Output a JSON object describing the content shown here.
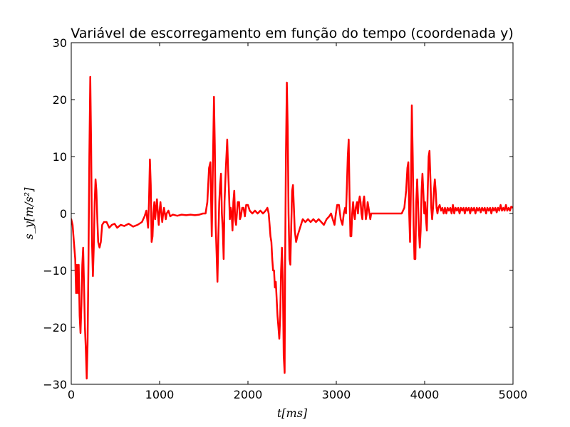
{
  "chart_data": {
    "type": "line",
    "title": "Variável de escorregamento em função do tempo (coordenada y)",
    "xlabel": "t[ms]",
    "ylabel": "s_y[m/s²]",
    "xlim": [
      0,
      5000
    ],
    "ylim": [
      -30,
      30
    ],
    "xticks": [
      0,
      1000,
      2000,
      3000,
      4000,
      5000
    ],
    "yticks": [
      -30,
      -20,
      -10,
      0,
      10,
      20,
      30
    ],
    "grid": false,
    "legend": "none",
    "colors": {
      "line": "#ff0000",
      "axes": "#000000",
      "background": "#ffffff"
    },
    "series": [
      {
        "values": [
          [
            0,
            -1
          ],
          [
            15,
            -2
          ],
          [
            30,
            -5
          ],
          [
            45,
            -8
          ],
          [
            55,
            -14
          ],
          [
            65,
            -9
          ],
          [
            75,
            -14
          ],
          [
            85,
            -9
          ],
          [
            95,
            -18
          ],
          [
            105,
            -21
          ],
          [
            115,
            -16
          ],
          [
            125,
            -9
          ],
          [
            135,
            -6
          ],
          [
            145,
            -13
          ],
          [
            155,
            -20
          ],
          [
            165,
            -24
          ],
          [
            175,
            -29
          ],
          [
            185,
            -23
          ],
          [
            195,
            -8
          ],
          [
            205,
            10
          ],
          [
            215,
            24
          ],
          [
            225,
            12
          ],
          [
            235,
            -5
          ],
          [
            245,
            -11
          ],
          [
            255,
            -6
          ],
          [
            265,
            2
          ],
          [
            275,
            6
          ],
          [
            285,
            4
          ],
          [
            295,
            -1
          ],
          [
            305,
            -5
          ],
          [
            320,
            -6
          ],
          [
            335,
            -5
          ],
          [
            350,
            -2
          ],
          [
            370,
            -1.5
          ],
          [
            400,
            -1.5
          ],
          [
            430,
            -2.5
          ],
          [
            460,
            -2
          ],
          [
            490,
            -1.8
          ],
          [
            520,
            -2.5
          ],
          [
            560,
            -2
          ],
          [
            600,
            -2.2
          ],
          [
            650,
            -1.8
          ],
          [
            700,
            -2.3
          ],
          [
            750,
            -2
          ],
          [
            800,
            -1.5
          ],
          [
            830,
            -0.5
          ],
          [
            850,
            0.5
          ],
          [
            860,
            -1
          ],
          [
            870,
            -2.5
          ],
          [
            880,
            2
          ],
          [
            890,
            9.5
          ],
          [
            900,
            5
          ],
          [
            910,
            -5
          ],
          [
            920,
            -4
          ],
          [
            930,
            0
          ],
          [
            940,
            2
          ],
          [
            950,
            -1
          ],
          [
            960,
            1
          ],
          [
            970,
            2.5
          ],
          [
            980,
            0
          ],
          [
            990,
            -2
          ],
          [
            1000,
            0.5
          ],
          [
            1010,
            2
          ],
          [
            1020,
            0
          ],
          [
            1030,
            -1.5
          ],
          [
            1040,
            0
          ],
          [
            1050,
            1
          ],
          [
            1060,
            0
          ],
          [
            1070,
            -1
          ],
          [
            1080,
            0
          ],
          [
            1100,
            0.5
          ],
          [
            1120,
            -0.5
          ],
          [
            1150,
            -0.2
          ],
          [
            1200,
            -0.4
          ],
          [
            1250,
            -0.2
          ],
          [
            1300,
            -0.3
          ],
          [
            1350,
            -0.2
          ],
          [
            1400,
            -0.3
          ],
          [
            1450,
            -0.2
          ],
          [
            1490,
            0
          ],
          [
            1520,
            0
          ],
          [
            1540,
            2
          ],
          [
            1560,
            8
          ],
          [
            1575,
            9
          ],
          [
            1590,
            -4
          ],
          [
            1600,
            5
          ],
          [
            1615,
            20.5
          ],
          [
            1625,
            12
          ],
          [
            1635,
            -2
          ],
          [
            1645,
            -7
          ],
          [
            1655,
            -12
          ],
          [
            1665,
            -4
          ],
          [
            1675,
            2
          ],
          [
            1685,
            5
          ],
          [
            1695,
            7
          ],
          [
            1705,
            0
          ],
          [
            1715,
            -3
          ],
          [
            1725,
            -8
          ],
          [
            1735,
            2
          ],
          [
            1750,
            8
          ],
          [
            1765,
            13
          ],
          [
            1775,
            8
          ],
          [
            1785,
            4
          ],
          [
            1795,
            -1
          ],
          [
            1805,
            1
          ],
          [
            1815,
            0
          ],
          [
            1825,
            -3
          ],
          [
            1835,
            2
          ],
          [
            1845,
            4
          ],
          [
            1855,
            -1
          ],
          [
            1865,
            -2
          ],
          [
            1875,
            0
          ],
          [
            1885,
            2
          ],
          [
            1900,
            2
          ],
          [
            1910,
            -1
          ],
          [
            1920,
            -0.5
          ],
          [
            1935,
            1
          ],
          [
            1950,
            1
          ],
          [
            1965,
            -0.5
          ],
          [
            1980,
            1.5
          ],
          [
            2000,
            1.5
          ],
          [
            2020,
            0.5
          ],
          [
            2050,
            0
          ],
          [
            2080,
            0.5
          ],
          [
            2110,
            0
          ],
          [
            2140,
            0.5
          ],
          [
            2170,
            0
          ],
          [
            2200,
            0.5
          ],
          [
            2220,
            1
          ],
          [
            2235,
            0
          ],
          [
            2245,
            -2
          ],
          [
            2255,
            -4
          ],
          [
            2265,
            -5
          ],
          [
            2275,
            -8
          ],
          [
            2285,
            -10
          ],
          [
            2295,
            -10
          ],
          [
            2305,
            -13
          ],
          [
            2315,
            -12
          ],
          [
            2325,
            -15
          ],
          [
            2335,
            -18
          ],
          [
            2345,
            -20
          ],
          [
            2355,
            -22
          ],
          [
            2365,
            -18
          ],
          [
            2375,
            -10
          ],
          [
            2385,
            -6
          ],
          [
            2395,
            -12
          ],
          [
            2405,
            -25
          ],
          [
            2415,
            -28
          ],
          [
            2420,
            -10
          ],
          [
            2430,
            10
          ],
          [
            2440,
            23
          ],
          [
            2450,
            15
          ],
          [
            2460,
            0
          ],
          [
            2470,
            -8
          ],
          [
            2480,
            -9
          ],
          [
            2490,
            -2
          ],
          [
            2500,
            4
          ],
          [
            2510,
            5
          ],
          [
            2520,
            1
          ],
          [
            2530,
            -3
          ],
          [
            2545,
            -5
          ],
          [
            2560,
            -4
          ],
          [
            2580,
            -3
          ],
          [
            2600,
            -2
          ],
          [
            2620,
            -1
          ],
          [
            2650,
            -1.5
          ],
          [
            2680,
            -1
          ],
          [
            2710,
            -1.5
          ],
          [
            2740,
            -1
          ],
          [
            2770,
            -1.5
          ],
          [
            2800,
            -1
          ],
          [
            2830,
            -1.5
          ],
          [
            2860,
            -2
          ],
          [
            2890,
            -1
          ],
          [
            2920,
            -0.5
          ],
          [
            2940,
            0
          ],
          [
            2960,
            -1
          ],
          [
            2980,
            -2
          ],
          [
            2995,
            0
          ],
          [
            3010,
            1.5
          ],
          [
            3030,
            1.5
          ],
          [
            3050,
            -1
          ],
          [
            3070,
            -2
          ],
          [
            3085,
            0
          ],
          [
            3100,
            1
          ],
          [
            3110,
            0
          ],
          [
            3120,
            5
          ],
          [
            3130,
            10
          ],
          [
            3140,
            13
          ],
          [
            3150,
            3
          ],
          [
            3160,
            -4
          ],
          [
            3170,
            -4
          ],
          [
            3180,
            0
          ],
          [
            3190,
            2
          ],
          [
            3200,
            0
          ],
          [
            3210,
            -1
          ],
          [
            3220,
            1
          ],
          [
            3235,
            2
          ],
          [
            3245,
            0
          ],
          [
            3255,
            2
          ],
          [
            3265,
            3
          ],
          [
            3275,
            2
          ],
          [
            3285,
            0
          ],
          [
            3295,
            -1
          ],
          [
            3305,
            2
          ],
          [
            3315,
            3
          ],
          [
            3325,
            1
          ],
          [
            3335,
            -1
          ],
          [
            3345,
            0
          ],
          [
            3355,
            2
          ],
          [
            3365,
            1
          ],
          [
            3375,
            0
          ],
          [
            3385,
            -1
          ],
          [
            3395,
            0
          ],
          [
            3410,
            0
          ],
          [
            3440,
            0
          ],
          [
            3470,
            0
          ],
          [
            3500,
            0
          ],
          [
            3530,
            0
          ],
          [
            3560,
            0
          ],
          [
            3590,
            0
          ],
          [
            3620,
            0
          ],
          [
            3650,
            0
          ],
          [
            3680,
            0
          ],
          [
            3710,
            0
          ],
          [
            3740,
            0
          ],
          [
            3770,
            1
          ],
          [
            3790,
            4
          ],
          [
            3805,
            8
          ],
          [
            3815,
            9
          ],
          [
            3825,
            0
          ],
          [
            3835,
            -5
          ],
          [
            3845,
            5
          ],
          [
            3855,
            19
          ],
          [
            3865,
            10
          ],
          [
            3875,
            -2
          ],
          [
            3885,
            -8
          ],
          [
            3895,
            -8
          ],
          [
            3905,
            2
          ],
          [
            3915,
            6
          ],
          [
            3925,
            2
          ],
          [
            3935,
            -3
          ],
          [
            3945,
            -6
          ],
          [
            3955,
            -3
          ],
          [
            3965,
            4
          ],
          [
            3975,
            7
          ],
          [
            3985,
            4
          ],
          [
            3995,
            0
          ],
          [
            4005,
            2
          ],
          [
            4015,
            -1
          ],
          [
            4025,
            -3
          ],
          [
            4035,
            4
          ],
          [
            4045,
            10
          ],
          [
            4055,
            11
          ],
          [
            4065,
            6
          ],
          [
            4075,
            1
          ],
          [
            4085,
            -1
          ],
          [
            4095,
            1
          ],
          [
            4105,
            4
          ],
          [
            4115,
            6
          ],
          [
            4125,
            4
          ],
          [
            4135,
            1
          ],
          [
            4145,
            0
          ],
          [
            4155,
            1
          ],
          [
            4170,
            1.5
          ],
          [
            4185,
            0.5
          ],
          [
            4200,
            1
          ],
          [
            4215,
            0
          ],
          [
            4230,
            1
          ],
          [
            4245,
            0
          ],
          [
            4260,
            1
          ],
          [
            4275,
            0.5
          ],
          [
            4290,
            1
          ],
          [
            4305,
            0
          ],
          [
            4320,
            1.5
          ],
          [
            4335,
            0
          ],
          [
            4350,
            1
          ],
          [
            4365,
            0.5
          ],
          [
            4380,
            1
          ],
          [
            4395,
            0
          ],
          [
            4410,
            1
          ],
          [
            4425,
            0.5
          ],
          [
            4440,
            1
          ],
          [
            4455,
            0
          ],
          [
            4470,
            1
          ],
          [
            4485,
            0.5
          ],
          [
            4500,
            1
          ],
          [
            4515,
            0
          ],
          [
            4530,
            1
          ],
          [
            4545,
            0.5
          ],
          [
            4560,
            1
          ],
          [
            4575,
            0
          ],
          [
            4590,
            1
          ],
          [
            4605,
            0.5
          ],
          [
            4620,
            1
          ],
          [
            4635,
            0.2
          ],
          [
            4650,
            1
          ],
          [
            4665,
            0.5
          ],
          [
            4680,
            1
          ],
          [
            4695,
            0
          ],
          [
            4710,
            1
          ],
          [
            4725,
            0.5
          ],
          [
            4740,
            1
          ],
          [
            4755,
            0
          ],
          [
            4770,
            1
          ],
          [
            4785,
            0.5
          ],
          [
            4800,
            1
          ],
          [
            4815,
            0.2
          ],
          [
            4830,
            1
          ],
          [
            4845,
            0.5
          ],
          [
            4860,
            1.5
          ],
          [
            4875,
            0.5
          ],
          [
            4890,
            1
          ],
          [
            4905,
            0.5
          ],
          [
            4920,
            1.5
          ],
          [
            4935,
            0.5
          ],
          [
            4950,
            1
          ],
          [
            4965,
            0.5
          ],
          [
            4980,
            1.2
          ],
          [
            5000,
            1
          ]
        ]
      }
    ]
  }
}
